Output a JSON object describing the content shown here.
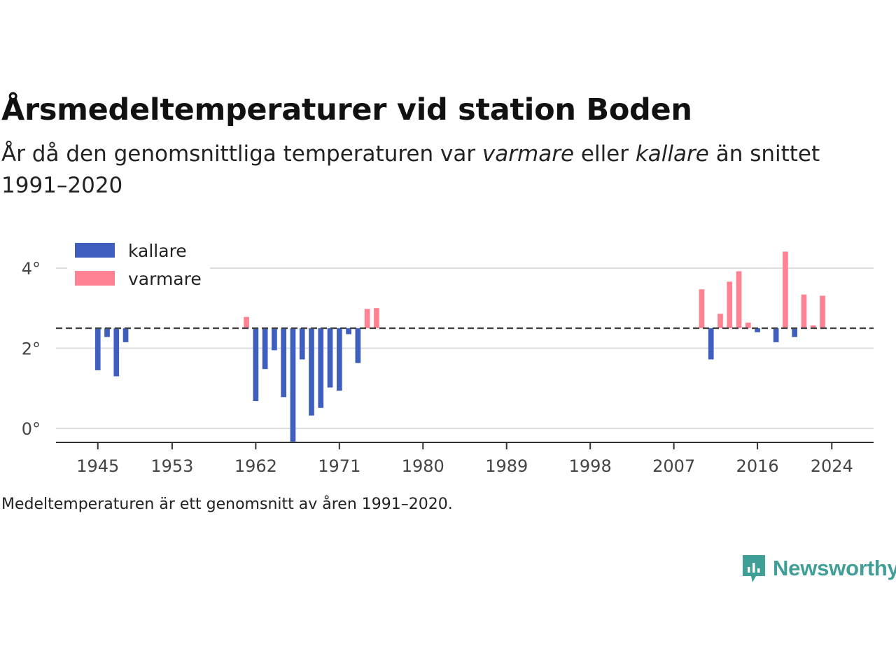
{
  "title": "Årsmedeltemperaturer vid station Boden",
  "subtitle": {
    "part1": "År då den genomsnittliga temperaturen var ",
    "warm_word": "varmare",
    "part2": " eller ",
    "cold_word": "kallare",
    "part3": " än snittet 1991–2020"
  },
  "footnote": "Medeltemperaturen är ett genomsnitt av åren 1991–2020.",
  "brand": "Newsworthy",
  "colors": {
    "cold": "#3e5fbd",
    "warm": "#fe8291",
    "baseline": "#444444",
    "grid": "#dddddd",
    "axis": "#333333",
    "brand": "#3f9e96"
  },
  "chart_data": {
    "type": "bar",
    "title": "Årsmedeltemperaturer vid station Boden",
    "baseline": 2.5,
    "ylim": [
      -0.35,
      4.75
    ],
    "xlim": [
      1940.5,
      2028.5
    ],
    "yticks": [
      0,
      2,
      4
    ],
    "ytick_labels": [
      "0°",
      "2°",
      "4°"
    ],
    "xticks": [
      1945,
      1953,
      1962,
      1971,
      1980,
      1989,
      1998,
      2007,
      2016,
      2024
    ],
    "xtick_labels": [
      "1945",
      "1953",
      "1962",
      "1971",
      "1980",
      "1989",
      "1998",
      "2007",
      "2016",
      "2024"
    ],
    "legend": {
      "position": "top-left",
      "items": [
        {
          "key": "cold",
          "label": "kallare"
        },
        {
          "key": "warm",
          "label": "varmare"
        }
      ]
    },
    "series": [
      {
        "name": "Årsmedeltemperatur",
        "points": [
          {
            "year": 1945,
            "value": 1.45
          },
          {
            "year": 1946,
            "value": 2.28
          },
          {
            "year": 1947,
            "value": 1.3
          },
          {
            "year": 1948,
            "value": 2.15
          },
          {
            "year": 1961,
            "value": 2.78
          },
          {
            "year": 1962,
            "value": 0.68
          },
          {
            "year": 1963,
            "value": 1.48
          },
          {
            "year": 1964,
            "value": 1.95
          },
          {
            "year": 1965,
            "value": 0.78
          },
          {
            "year": 1966,
            "value": -0.33
          },
          {
            "year": 1967,
            "value": 1.72
          },
          {
            "year": 1968,
            "value": 0.32
          },
          {
            "year": 1969,
            "value": 0.51
          },
          {
            "year": 1970,
            "value": 1.02
          },
          {
            "year": 1971,
            "value": 0.94
          },
          {
            "year": 1972,
            "value": 2.35
          },
          {
            "year": 1973,
            "value": 1.63
          },
          {
            "year": 1974,
            "value": 2.98
          },
          {
            "year": 1975,
            "value": 3.0
          },
          {
            "year": 2010,
            "value": 3.47
          },
          {
            "year": 2011,
            "value": 1.72
          },
          {
            "year": 2012,
            "value": 2.86
          },
          {
            "year": 2013,
            "value": 3.66
          },
          {
            "year": 2014,
            "value": 3.92
          },
          {
            "year": 2015,
            "value": 2.64
          },
          {
            "year": 2016,
            "value": 2.4
          },
          {
            "year": 2018,
            "value": 2.15
          },
          {
            "year": 2019,
            "value": 4.41
          },
          {
            "year": 2020,
            "value": 2.28
          },
          {
            "year": 2021,
            "value": 3.34
          },
          {
            "year": 2022,
            "value": 2.57
          },
          {
            "year": 2023,
            "value": 3.31
          }
        ]
      }
    ]
  }
}
